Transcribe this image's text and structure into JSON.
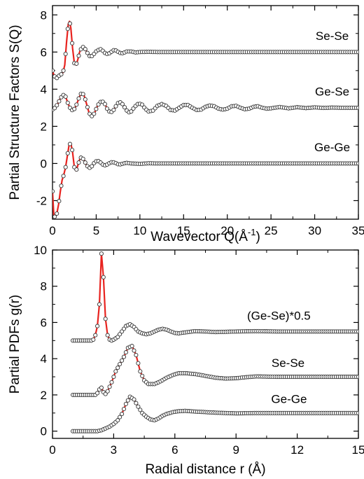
{
  "chart_data": [
    {
      "type": "line",
      "xlabel": "Wavevector Q(Å",
      "xlabel_sup": "-1",
      "xlabel_end": ")",
      "ylabel": "Partial Structure Factors S(Q)",
      "xlim": [
        0,
        35
      ],
      "ylim": [
        -3,
        8.5
      ],
      "xticks": [
        0,
        5,
        10,
        15,
        20,
        25,
        30,
        35
      ],
      "yticks": [
        -2,
        0,
        2,
        4,
        6,
        8
      ],
      "grid": false,
      "marker_stride_x": 0.25,
      "series": [
        {
          "name": "Se-Se",
          "offset": 6,
          "label_at": [
            32,
            6.65
          ],
          "x": [
            0,
            0.2,
            0.5,
            0.8,
            1.0,
            1.2,
            1.4,
            1.6,
            1.8,
            1.95,
            2.1,
            2.3,
            2.5,
            2.7,
            2.9,
            3.1,
            3.4,
            3.7,
            4.0,
            4.3,
            4.6,
            4.9,
            5.2,
            5.5,
            5.8,
            6.1,
            6.4,
            6.7,
            7.0,
            7.3,
            7.6,
            7.9,
            8.2,
            8.5,
            9,
            9.5,
            10,
            11,
            12,
            14,
            16,
            18,
            20,
            22,
            25,
            28,
            31,
            35
          ],
          "y": [
            5.0,
            4.7,
            4.6,
            4.75,
            4.8,
            4.9,
            5.3,
            6.5,
            7.5,
            7.65,
            7.3,
            6.2,
            5.4,
            5.3,
            5.6,
            6.0,
            6.3,
            6.2,
            5.95,
            5.75,
            5.8,
            6.0,
            6.1,
            6.15,
            6.05,
            5.9,
            5.9,
            6.0,
            6.1,
            6.08,
            5.98,
            5.92,
            5.97,
            6.03,
            6.03,
            5.98,
            6.0,
            6.01,
            6.0,
            6.0,
            6.0,
            6.0,
            6.0,
            6.0,
            6.0,
            6.0,
            6.0,
            6.0
          ]
        },
        {
          "name": "Ge-Se",
          "offset": 3,
          "label_at": [
            32,
            3.65
          ],
          "x": [
            0,
            0.3,
            0.6,
            0.9,
            1.2,
            1.5,
            1.8,
            2.1,
            2.4,
            2.7,
            3.0,
            3.3,
            3.6,
            3.9,
            4.2,
            4.5,
            4.8,
            5.1,
            5.4,
            5.7,
            6.0,
            6.3,
            6.6,
            6.9,
            7.2,
            7.5,
            7.8,
            8.1,
            8.4,
            8.7,
            9.0,
            9.4,
            9.8,
            10.2,
            10.6,
            11.0,
            11.5,
            12.0,
            12.5,
            13.0,
            13.5,
            14.0,
            14.5,
            15.0,
            15.5,
            16.0,
            16.5,
            17.0,
            17.5,
            18.0,
            18.5,
            19.0,
            19.5,
            20.0,
            20.5,
            21.0,
            21.5,
            22.0,
            22.5,
            23.0,
            23.5,
            24.0,
            24.5,
            25.0,
            26,
            27,
            28,
            29,
            30,
            31,
            32,
            33,
            34,
            35
          ],
          "y": [
            2.9,
            3.0,
            3.2,
            3.5,
            3.7,
            3.6,
            3.2,
            2.9,
            2.85,
            3.1,
            3.5,
            3.8,
            3.7,
            3.2,
            2.7,
            2.55,
            2.7,
            3.05,
            3.3,
            3.35,
            3.2,
            2.9,
            2.75,
            2.8,
            3.05,
            3.25,
            3.3,
            3.15,
            2.9,
            2.75,
            2.8,
            3.05,
            3.22,
            3.2,
            2.95,
            2.8,
            2.85,
            3.1,
            3.2,
            3.1,
            2.88,
            2.85,
            3.0,
            3.15,
            3.15,
            3.0,
            2.88,
            2.9,
            3.05,
            3.12,
            3.08,
            2.95,
            2.9,
            2.95,
            3.08,
            3.1,
            3.0,
            2.92,
            2.95,
            3.05,
            3.08,
            3.0,
            2.95,
            2.97,
            3.04,
            2.97,
            3.03,
            2.98,
            3.02,
            2.99,
            3.01,
            3.0,
            3.0,
            3.0
          ]
        },
        {
          "name": "Ge-Ge",
          "offset": 0,
          "label_at": [
            32,
            0.65
          ],
          "x": [
            0,
            0.15,
            0.3,
            0.5,
            0.7,
            0.9,
            1.1,
            1.3,
            1.5,
            1.7,
            1.9,
            2.1,
            2.3,
            2.5,
            2.7,
            2.9,
            3.1,
            3.3,
            3.6,
            3.9,
            4.2,
            4.5,
            4.8,
            5.1,
            5.4,
            5.7,
            6.0,
            6.3,
            6.6,
            6.9,
            7.2,
            7.5,
            7.8,
            8.1,
            8.5,
            9,
            10,
            11,
            12,
            14,
            16,
            18,
            20,
            25,
            30,
            35
          ],
          "y": [
            -1.5,
            -2.8,
            -2.9,
            -2.7,
            -2.2,
            -1.5,
            -0.9,
            -0.6,
            -0.2,
            0.4,
            1.0,
            1.1,
            0.6,
            -0.2,
            -0.4,
            -0.1,
            0.2,
            0.35,
            0.2,
            -0.1,
            -0.25,
            -0.15,
            0.05,
            0.15,
            0.1,
            -0.05,
            -0.1,
            -0.05,
            0.05,
            0.08,
            0.03,
            -0.04,
            -0.05,
            0.0,
            0.03,
            0.0,
            -0.02,
            0.01,
            0.0,
            0.0,
            0.0,
            0.0,
            0.0,
            0.0,
            0.0,
            0.0
          ]
        }
      ]
    },
    {
      "type": "line",
      "xlabel": "Radial distance r (Å)",
      "ylabel": "Partial PDFs g(r)",
      "xlim": [
        0,
        15
      ],
      "ylim": [
        -0.4,
        10
      ],
      "xticks": [
        0,
        3,
        6,
        9,
        12,
        15
      ],
      "yticks": [
        0,
        2,
        4,
        6,
        8,
        10
      ],
      "grid": false,
      "marker_stride_x": 0.1,
      "series": [
        {
          "name": "(Ge-Se)*0.5",
          "offset": 5,
          "label_at": [
            11.1,
            6.15
          ],
          "x": [
            1.0,
            1.9,
            2.0,
            2.1,
            2.2,
            2.3,
            2.4,
            2.5,
            2.6,
            2.7,
            2.8,
            2.9,
            3.0,
            3.2,
            3.4,
            3.6,
            3.8,
            4.0,
            4.2,
            4.4,
            4.6,
            4.8,
            5.0,
            5.2,
            5.4,
            5.6,
            5.8,
            6.0,
            6.2,
            6.5,
            7.0,
            7.5,
            8,
            9,
            10,
            11,
            12,
            13,
            14,
            15
          ],
          "y": [
            5.0,
            5.0,
            5.05,
            5.3,
            5.8,
            7.0,
            9.8,
            8.5,
            6.2,
            5.3,
            5.05,
            5.0,
            5.05,
            5.2,
            5.5,
            5.8,
            5.9,
            5.75,
            5.5,
            5.4,
            5.35,
            5.4,
            5.5,
            5.6,
            5.65,
            5.6,
            5.5,
            5.42,
            5.4,
            5.45,
            5.52,
            5.5,
            5.47,
            5.5,
            5.52,
            5.5,
            5.5,
            5.5,
            5.5,
            5.5
          ]
        },
        {
          "name": "Se-Se",
          "offset": 2,
          "label_at": [
            11.55,
            3.55
          ],
          "x": [
            1.0,
            2.1,
            2.2,
            2.3,
            2.4,
            2.5,
            2.6,
            2.7,
            2.9,
            3.1,
            3.3,
            3.5,
            3.7,
            3.9,
            4.1,
            4.3,
            4.5,
            4.7,
            5.0,
            5.3,
            5.6,
            5.9,
            6.2,
            6.5,
            7.0,
            7.5,
            8.0,
            8.5,
            9.0,
            9.5,
            10,
            11,
            12,
            13,
            14,
            15
          ],
          "y": [
            2.0,
            2.0,
            2.1,
            2.3,
            2.4,
            2.15,
            2.05,
            2.2,
            2.7,
            3.3,
            3.7,
            4.1,
            4.6,
            4.7,
            4.2,
            3.3,
            2.8,
            2.6,
            2.6,
            2.75,
            2.95,
            3.1,
            3.2,
            3.2,
            3.15,
            3.05,
            2.95,
            2.9,
            2.92,
            2.98,
            3.02,
            3.0,
            3.0,
            3.0,
            3.0,
            3.0
          ]
        },
        {
          "name": "Ge-Ge",
          "offset": 0,
          "label_at": [
            11.6,
            1.55
          ],
          "x": [
            1.0,
            2.2,
            2.4,
            2.6,
            2.8,
            3.0,
            3.2,
            3.4,
            3.6,
            3.8,
            4.0,
            4.2,
            4.4,
            4.6,
            4.8,
            5.0,
            5.2,
            5.4,
            5.6,
            5.9,
            6.2,
            6.5,
            7.0,
            7.5,
            8.0,
            8.5,
            9.0,
            9.5,
            10,
            11,
            12,
            13,
            14,
            15
          ],
          "y": [
            0.0,
            0.0,
            0.05,
            0.15,
            0.25,
            0.4,
            0.6,
            0.95,
            1.5,
            1.9,
            1.75,
            1.35,
            1.0,
            0.8,
            0.65,
            0.6,
            0.7,
            0.85,
            0.95,
            1.05,
            1.1,
            1.12,
            1.08,
            1.05,
            1.02,
            1.0,
            0.98,
            0.99,
            1.0,
            1.0,
            1.0,
            1.0,
            1.0,
            1.0
          ]
        }
      ]
    }
  ]
}
